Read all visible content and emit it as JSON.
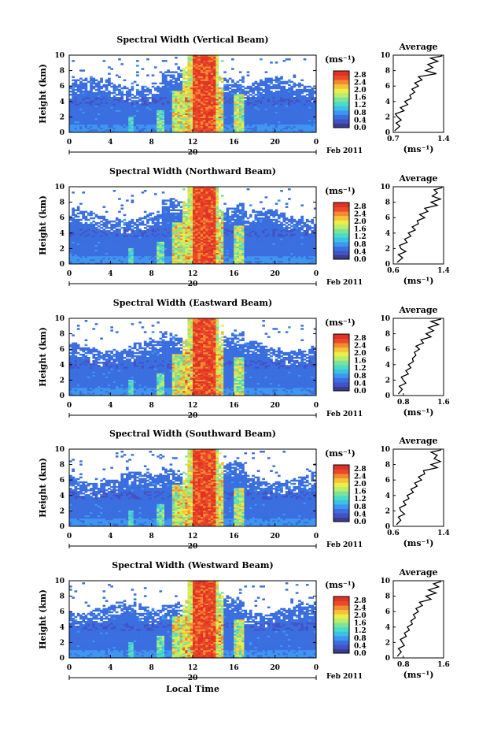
{
  "chart_data": [
    {
      "type": "heatmap",
      "title": "Spectral Width (Vertical Beam)",
      "ylabel": "Height (km)",
      "yticks": [
        "0",
        "2",
        "4",
        "6",
        "8",
        "10"
      ],
      "xticks": [
        "0",
        "4",
        "8",
        "12",
        "16",
        "20",
        "0"
      ],
      "date_day": "20",
      "date_label": "Feb 2011",
      "ylim": [
        0,
        10
      ],
      "xlim": [
        0,
        24
      ],
      "colorbar": {
        "unit": "(ms⁻¹)",
        "ticks": [
          "0.0",
          "0.4",
          "0.8",
          "1.2",
          "1.6",
          "2.0",
          "2.4",
          "2.8"
        ]
      },
      "average": {
        "title": "Average",
        "xlabel": "(ms⁻¹)",
        "xticks": [
          "0.7",
          "1.4"
        ],
        "xlim": [
          0.7,
          1.4
        ],
        "profile": [
          [
            0.2,
            0.72
          ],
          [
            0.8,
            0.79
          ],
          [
            1.2,
            0.74
          ],
          [
            1.6,
            0.81
          ],
          [
            2.0,
            0.76
          ],
          [
            2.4,
            0.73
          ],
          [
            2.8,
            0.85
          ],
          [
            3.2,
            0.8
          ],
          [
            3.6,
            0.9
          ],
          [
            4.0,
            0.86
          ],
          [
            4.4,
            0.95
          ],
          [
            4.8,
            0.93
          ],
          [
            5.2,
            1.0
          ],
          [
            5.6,
            0.96
          ],
          [
            6.0,
            1.05
          ],
          [
            6.4,
            1.0
          ],
          [
            6.8,
            1.1
          ],
          [
            7.2,
            1.05
          ],
          [
            7.6,
            1.3
          ],
          [
            8.0,
            1.15
          ],
          [
            8.4,
            1.25
          ],
          [
            8.8,
            1.18
          ],
          [
            9.2,
            1.32
          ],
          [
            9.6,
            1.22
          ],
          [
            9.9,
            1.38
          ]
        ]
      }
    },
    {
      "type": "heatmap",
      "title": "Spectral Width (Northward Beam)",
      "ylabel": "Height (km)",
      "yticks": [
        "0",
        "2",
        "4",
        "6",
        "8",
        "10"
      ],
      "xticks": [
        "0",
        "4",
        "8",
        "12",
        "16",
        "20",
        "0"
      ],
      "date_day": "20",
      "date_label": "Feb 2011",
      "ylim": [
        0,
        10
      ],
      "xlim": [
        0,
        24
      ],
      "colorbar": {
        "unit": "(ms⁻¹)",
        "ticks": [
          "0.0",
          "0.4",
          "0.8",
          "1.2",
          "1.6",
          "2.0",
          "2.4",
          "2.8"
        ]
      },
      "average": {
        "title": "Average",
        "xlabel": "(ms⁻¹)",
        "xticks": [
          "0.6",
          "1.4"
        ],
        "xlim": [
          0.6,
          1.4
        ],
        "profile": [
          [
            0.2,
            0.66
          ],
          [
            0.8,
            0.75
          ],
          [
            1.2,
            0.68
          ],
          [
            1.6,
            0.8
          ],
          [
            2.0,
            0.72
          ],
          [
            2.4,
            0.7
          ],
          [
            2.8,
            0.82
          ],
          [
            3.2,
            0.78
          ],
          [
            3.6,
            0.88
          ],
          [
            4.0,
            0.84
          ],
          [
            4.4,
            0.95
          ],
          [
            4.8,
            0.9
          ],
          [
            5.2,
            1.0
          ],
          [
            5.6,
            0.98
          ],
          [
            6.0,
            1.1
          ],
          [
            6.4,
            1.02
          ],
          [
            6.8,
            1.15
          ],
          [
            7.2,
            1.1
          ],
          [
            7.6,
            1.3
          ],
          [
            8.0,
            1.2
          ],
          [
            8.4,
            1.35
          ],
          [
            8.8,
            1.22
          ],
          [
            9.2,
            1.3
          ],
          [
            9.6,
            1.25
          ],
          [
            9.9,
            1.38
          ]
        ]
      }
    },
    {
      "type": "heatmap",
      "title": "Spectral Width (Eastward Beam)",
      "ylabel": "Height (km)",
      "yticks": [
        "0",
        "2",
        "4",
        "6",
        "8",
        "10"
      ],
      "xticks": [
        "0",
        "4",
        "8",
        "12",
        "16",
        "20",
        "0"
      ],
      "date_day": "20",
      "date_label": "Feb 2011",
      "ylim": [
        0,
        10
      ],
      "xlim": [
        0,
        24
      ],
      "colorbar": {
        "unit": "(ms⁻¹)",
        "ticks": [
          "0.0",
          "0.4",
          "0.8",
          "1.2",
          "1.6",
          "2.0",
          "2.4",
          "2.8"
        ]
      },
      "average": {
        "title": "Average",
        "xlabel": "(ms⁻¹)",
        "xticks": [
          "0.8",
          "1.6"
        ],
        "xlim": [
          0.6,
          1.6
        ],
        "profile": [
          [
            0.2,
            0.7
          ],
          [
            0.8,
            0.78
          ],
          [
            1.2,
            0.72
          ],
          [
            1.6,
            0.85
          ],
          [
            2.0,
            0.8
          ],
          [
            2.4,
            0.76
          ],
          [
            2.8,
            0.9
          ],
          [
            3.2,
            0.85
          ],
          [
            3.6,
            0.95
          ],
          [
            4.0,
            0.9
          ],
          [
            4.4,
            1.0
          ],
          [
            4.8,
            0.98
          ],
          [
            5.2,
            1.05
          ],
          [
            5.6,
            1.02
          ],
          [
            6.0,
            1.12
          ],
          [
            6.4,
            1.05
          ],
          [
            6.8,
            1.2
          ],
          [
            7.2,
            1.15
          ],
          [
            7.6,
            1.35
          ],
          [
            8.0,
            1.25
          ],
          [
            8.4,
            1.4
          ],
          [
            8.8,
            1.3
          ],
          [
            9.2,
            1.5
          ],
          [
            9.6,
            1.35
          ],
          [
            9.9,
            1.55
          ]
        ]
      }
    },
    {
      "type": "heatmap",
      "title": "Spectral Width (Southward Beam)",
      "ylabel": "Height (km)",
      "yticks": [
        "0",
        "2",
        "4",
        "6",
        "8",
        "10"
      ],
      "xticks": [
        "0",
        "4",
        "8",
        "12",
        "16",
        "20",
        "0"
      ],
      "date_day": "20",
      "date_label": "Feb 2011",
      "ylim": [
        0,
        10
      ],
      "xlim": [
        0,
        24
      ],
      "colorbar": {
        "unit": "(ms⁻¹)",
        "ticks": [
          "0.0",
          "0.4",
          "0.8",
          "1.2",
          "1.6",
          "2.0",
          "2.4",
          "2.8"
        ]
      },
      "average": {
        "title": "Average",
        "xlabel": "(ms⁻¹)",
        "xticks": [
          "0.6",
          "1.4"
        ],
        "xlim": [
          0.6,
          1.4
        ],
        "profile": [
          [
            0.2,
            0.65
          ],
          [
            0.8,
            0.72
          ],
          [
            1.2,
            0.68
          ],
          [
            1.6,
            0.78
          ],
          [
            2.0,
            0.72
          ],
          [
            2.4,
            0.7
          ],
          [
            2.8,
            0.8
          ],
          [
            3.2,
            0.76
          ],
          [
            3.6,
            0.85
          ],
          [
            4.0,
            0.82
          ],
          [
            4.4,
            0.92
          ],
          [
            4.8,
            0.88
          ],
          [
            5.2,
            0.98
          ],
          [
            5.6,
            0.94
          ],
          [
            6.0,
            1.05
          ],
          [
            6.4,
            1.0
          ],
          [
            6.8,
            1.1
          ],
          [
            7.2,
            1.08
          ],
          [
            7.6,
            1.3
          ],
          [
            8.0,
            1.2
          ],
          [
            8.4,
            1.35
          ],
          [
            8.8,
            1.25
          ],
          [
            9.2,
            1.3
          ],
          [
            9.6,
            1.2
          ],
          [
            9.9,
            1.36
          ]
        ]
      }
    },
    {
      "type": "heatmap",
      "title": "Spectral Width (Westward Beam)",
      "ylabel": "Height (km)",
      "yticks": [
        "0",
        "2",
        "4",
        "6",
        "8",
        "10"
      ],
      "xticks": [
        "0",
        "4",
        "8",
        "12",
        "16",
        "20",
        "0"
      ],
      "date_day": "20",
      "date_label": "Feb 2011",
      "ylim": [
        0,
        10
      ],
      "xlim": [
        0,
        24
      ],
      "colorbar": {
        "unit": "(ms⁻¹)",
        "ticks": [
          "0.0",
          "0.4",
          "0.8",
          "1.2",
          "1.6",
          "2.0",
          "2.4",
          "2.8"
        ]
      },
      "average": {
        "title": "Average",
        "xlabel": "(ms⁻¹)",
        "xticks": [
          "0.8",
          "1.6"
        ],
        "xlim": [
          0.6,
          1.6
        ],
        "profile": [
          [
            0.2,
            0.68
          ],
          [
            0.8,
            0.76
          ],
          [
            1.2,
            0.7
          ],
          [
            1.6,
            0.82
          ],
          [
            2.0,
            0.78
          ],
          [
            2.4,
            0.74
          ],
          [
            2.8,
            0.86
          ],
          [
            3.2,
            0.82
          ],
          [
            3.6,
            0.92
          ],
          [
            4.0,
            0.88
          ],
          [
            4.4,
            0.98
          ],
          [
            4.8,
            0.95
          ],
          [
            5.2,
            1.04
          ],
          [
            5.6,
            1.0
          ],
          [
            6.0,
            1.1
          ],
          [
            6.4,
            1.05
          ],
          [
            6.8,
            1.18
          ],
          [
            7.2,
            1.12
          ],
          [
            7.6,
            1.35
          ],
          [
            8.0,
            1.25
          ],
          [
            8.4,
            1.45
          ],
          [
            8.8,
            1.3
          ],
          [
            9.2,
            1.5
          ],
          [
            9.6,
            1.4
          ],
          [
            9.9,
            1.55
          ]
        ]
      }
    }
  ],
  "xlabel": "Local Time"
}
